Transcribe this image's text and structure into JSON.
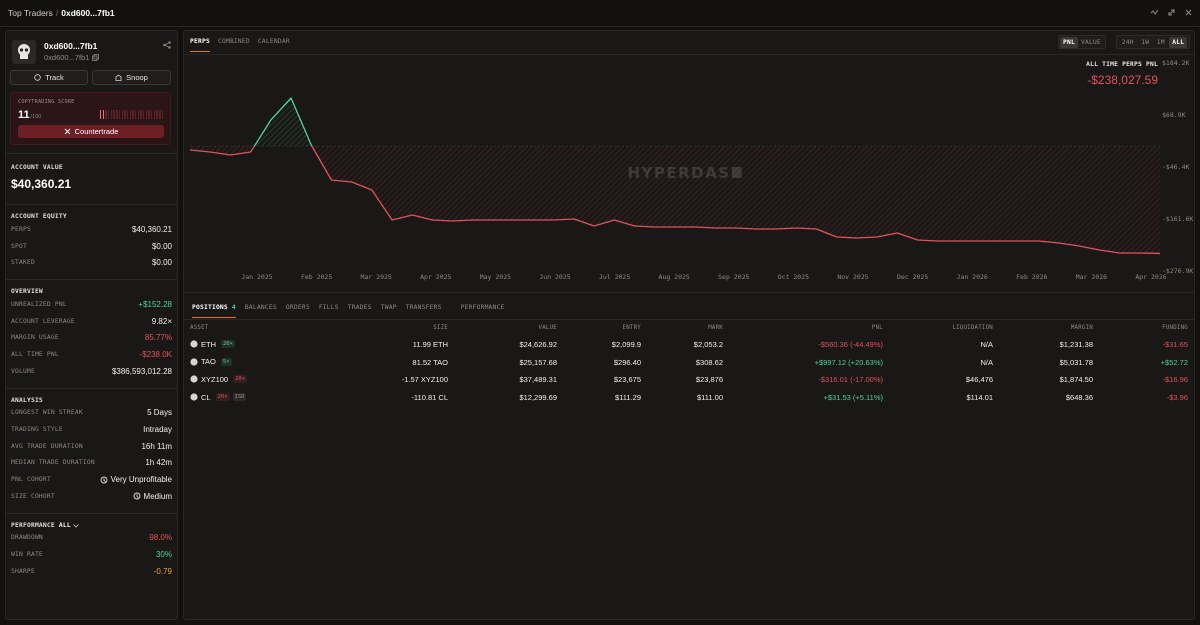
{
  "header": {
    "breadcrumb": "Top Traders",
    "separator": "/",
    "address": "0xd600...7fb1"
  },
  "profile": {
    "name": "0xd600...7fb1",
    "address": "0xd600...7fb1",
    "buttons": [
      "Track",
      "Snoop"
    ]
  },
  "copytrading": {
    "label": "COPYTRADING SCORE",
    "score": 11,
    "max": "/100",
    "action": "Countertrade"
  },
  "account_value": {
    "label": "ACCOUNT VALUE",
    "value": "$40,360.21"
  },
  "sections": [
    {
      "title": "ACCOUNT EQUITY",
      "rows": [
        {
          "label": "PERPS",
          "value": "$40,360.21"
        },
        {
          "label": "SPOT",
          "value": "$0.00"
        },
        {
          "label": "STAKED",
          "value": "$0.00"
        }
      ]
    },
    {
      "title": "OVERVIEW",
      "rows": [
        {
          "label": "UNREALIZED PNL",
          "value": "+$152.28",
          "color": "#4fd1a0"
        },
        {
          "label": "ACCOUNT LEVERAGE",
          "value": "9.82×"
        },
        {
          "label": "MARGIN USAGE",
          "value": "85.77%",
          "color": "#e0525c"
        },
        {
          "label": "ALL TIME PNL",
          "value": "-$238.0K",
          "color": "#e0525c"
        },
        {
          "label": "VOLUME",
          "value": "$386,593,012.28"
        }
      ]
    },
    {
      "title": "ANALYSIS",
      "rows": [
        {
          "label": "LONGEST WIN STREAK",
          "value": "5 Days"
        },
        {
          "label": "TRADING STYLE",
          "value": "Intraday"
        },
        {
          "label": "AVG TRADE DURATION",
          "value": "16h 11m"
        },
        {
          "label": "MEDIAN TRADE DURATION",
          "value": "1h 42m"
        },
        {
          "label": "PNL COHORT",
          "value": "Very Unprofitable",
          "icon": true
        },
        {
          "label": "SIZE COHORT",
          "value": "Medium",
          "icon": true
        }
      ]
    },
    {
      "title": "PERFORMANCE",
      "filter": "ALL",
      "rows": [
        {
          "label": "DRAWDOWN",
          "value": "98.0%",
          "color": "#e0525c"
        },
        {
          "label": "WIN RATE",
          "value": "30%",
          "color": "#4fd1a0"
        },
        {
          "label": "SHARPE",
          "value": "-0.79",
          "color": "#f0a030"
        }
      ]
    }
  ],
  "chart_tabs": {
    "items": [
      "PERPS",
      "COMBINED",
      "CALENDAR"
    ],
    "active": 0
  },
  "mode_toggle": {
    "items": [
      "PNL",
      "VALUE"
    ],
    "active": 0
  },
  "range_toggle": {
    "items": [
      "24H",
      "1W",
      "1M",
      "ALL"
    ],
    "active": 3
  },
  "chart_data": {
    "type": "line",
    "title": "ALL TIME PERPS PNL",
    "headline": "-$238,027.59",
    "watermark": "HYPERDASH",
    "xticks": [
      "Jan 2025",
      "Feb 2025",
      "Mar 2025",
      "Apr 2025",
      "May 2025",
      "Jun 2025",
      "Jul 2025",
      "Aug 2025",
      "Sep 2025",
      "Oct 2025",
      "Nov 2025",
      "Dec 2025",
      "Jan 2026",
      "Feb 2026",
      "Mar 2026",
      "Apr 2026"
    ],
    "values": [
      -8.7,
      -13.1,
      -19.7,
      -13.1,
      57.8,
      106.6,
      2.4,
      -75.2,
      -79.6,
      -97.3,
      -163.8,
      -152.8,
      -163.8,
      -166.0,
      -163.8,
      -163.8,
      -163.8,
      -163.8,
      -163.8,
      -161.6,
      -177.1,
      -163.8,
      -177.1,
      -179.3,
      -179.3,
      -179.3,
      -181.6,
      -181.6,
      -183.8,
      -183.8,
      -181.6,
      -183.8,
      -201.5,
      -203.7,
      -201.5,
      -192.7,
      -208.2,
      -210.4,
      -210.4,
      -210.4,
      -210.4,
      -210.4,
      -210.4,
      -214.8,
      -221.5,
      -230.3,
      -237.0,
      -237.0,
      -238.0
    ],
    "ylim": [
      -276.9,
      184.2
    ],
    "yticks": [
      {
        "value": 184.2,
        "label": "$184.2K"
      },
      {
        "value": 68.9,
        "label": "$68.9K"
      },
      {
        "value": -46.4,
        "label": "-$46.4K"
      },
      {
        "value": -161.6,
        "label": "-$161.6K"
      },
      {
        "value": -276.9,
        "label": "-$276.9K"
      }
    ],
    "grid": false,
    "colors": {
      "up": "#4fd1a0",
      "down": "#e0525c"
    }
  },
  "position_tabs": {
    "items": [
      {
        "label": "POSITIONS",
        "count": 4
      },
      {
        "label": "BALANCES"
      },
      {
        "label": "ORDERS"
      },
      {
        "label": "FILLS"
      },
      {
        "label": "TRADES"
      },
      {
        "label": "TWAP"
      },
      {
        "label": "TRANSFERS"
      },
      {
        "label": "PERFORMANCE"
      }
    ],
    "active": 0
  },
  "table": {
    "columns": [
      "ASSET",
      "SIZE",
      "VALUE",
      "ENTRY",
      "MARK",
      "PNL",
      "LIQUIDATION",
      "MARGIN",
      "FUNDING"
    ],
    "rows": [
      {
        "asset": "ETH",
        "tags": [
          {
            "text": "20×",
            "color": "#4fd1a0"
          }
        ],
        "cells": [
          "11.99 ETH",
          "$24,626.92",
          "$2,099.9",
          "$2,053.2",
          "-$560.36 (-44.49%)",
          "N/A",
          "$1,231.38",
          "-$31.65"
        ]
      },
      {
        "asset": "TAO",
        "tags": [
          {
            "text": "5×",
            "color": "#4fd1a0"
          }
        ],
        "cells": [
          "81.52 TAO",
          "$25,157.68",
          "$296.40",
          "$308.62",
          "+$997.12 (+20.63%)",
          "N/A",
          "$5,031.78",
          "+$52.72"
        ]
      },
      {
        "asset": "XYZ100",
        "tags": [
          {
            "text": "20×",
            "color": "#e0525c"
          }
        ],
        "cells": [
          "-1.57 XYZ100",
          "$37,489.31",
          "$23,675",
          "$23,876",
          "-$316.01 (-17.00%)",
          "$46,476",
          "$1,874.50",
          "-$16.96"
        ]
      },
      {
        "asset": "CL",
        "tags": [
          {
            "text": "20×",
            "color": "#e0525c"
          },
          {
            "text": "ISO",
            "color": "#9a958f"
          }
        ],
        "cells": [
          "-110.81 CL",
          "$12,299.69",
          "$111.29",
          "$111.00",
          "+$31.53 (+5.11%)",
          "$114.01",
          "$648.36",
          "-$3.96"
        ]
      }
    ]
  }
}
